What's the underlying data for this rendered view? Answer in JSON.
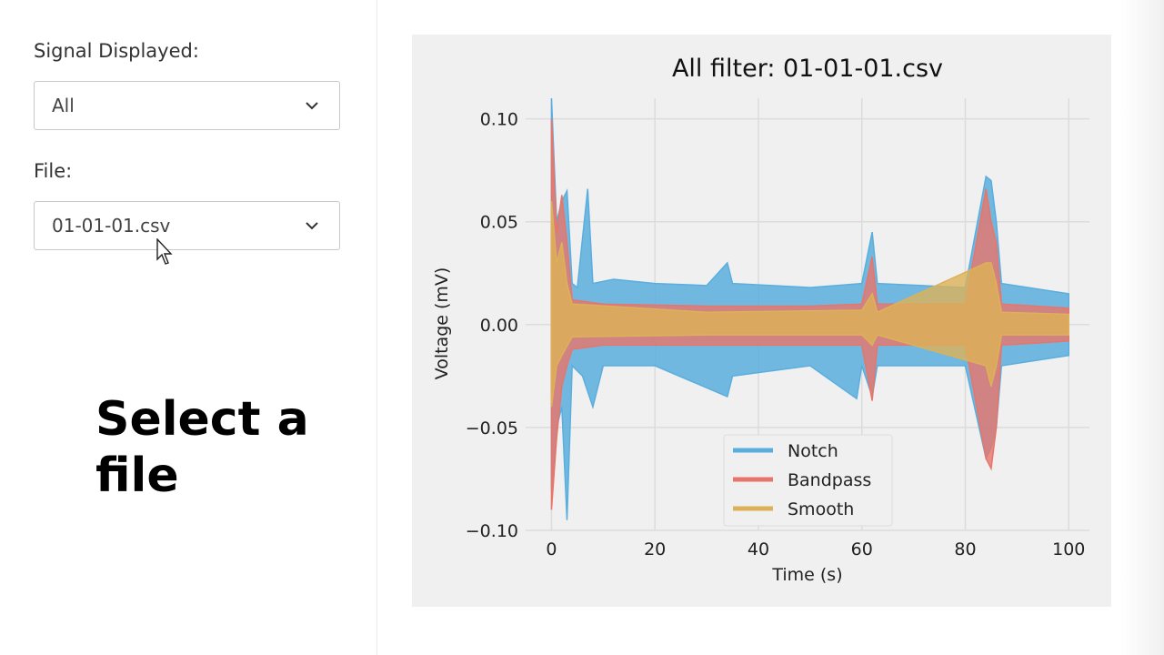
{
  "controls": {
    "signal_label": "Signal Displayed:",
    "signal_value": "All",
    "file_label": "File:",
    "file_value": "01-01-01.csv"
  },
  "caption": {
    "line1": "Select a",
    "line2": "file"
  },
  "icons": {
    "dropdown": "chevron-down-icon",
    "pointer": "mouse-cursor-icon"
  },
  "chart_data": {
    "type": "line",
    "title": "All filter: 01-01-01.csv",
    "xlabel": "Time (s)",
    "ylabel": "Voltage (mV)",
    "xlim": [
      -5,
      104
    ],
    "ylim": [
      -0.1,
      0.11
    ],
    "x_ticks": [
      0,
      20,
      40,
      60,
      80,
      100
    ],
    "x_tick_labels": [
      "0",
      "20",
      "40",
      "60",
      "80",
      "100"
    ],
    "y_ticks": [
      0.1,
      0.05,
      0.0,
      -0.05,
      -0.1
    ],
    "y_tick_labels": [
      "0.10",
      "0.05",
      "0.00",
      "−0.05",
      "−0.10"
    ],
    "grid": true,
    "legend_position": "bottom-center",
    "series": [
      {
        "name": "Notch",
        "color": "#5aaede",
        "upper": [
          [
            0,
            0.11
          ],
          [
            1,
            0.05
          ],
          [
            2,
            0.06
          ],
          [
            3,
            0.065
          ],
          [
            4,
            0.02
          ],
          [
            5,
            0.018
          ],
          [
            7,
            0.066
          ],
          [
            8,
            0.02
          ],
          [
            12,
            0.022
          ],
          [
            20,
            0.02
          ],
          [
            30,
            0.019
          ],
          [
            34,
            0.03
          ],
          [
            35,
            0.02
          ],
          [
            50,
            0.018
          ],
          [
            60,
            0.02
          ],
          [
            62,
            0.045
          ],
          [
            63,
            0.02
          ],
          [
            80,
            0.018
          ],
          [
            84,
            0.072
          ],
          [
            85,
            0.07
          ],
          [
            86,
            0.05
          ],
          [
            87,
            0.02
          ],
          [
            100,
            0.015
          ]
        ],
        "lower": [
          [
            0,
            -0.08
          ],
          [
            1,
            -0.05
          ],
          [
            2,
            -0.04
          ],
          [
            3,
            -0.095
          ],
          [
            4,
            -0.02
          ],
          [
            6,
            -0.025
          ],
          [
            8,
            -0.04
          ],
          [
            10,
            -0.02
          ],
          [
            20,
            -0.02
          ],
          [
            34,
            -0.035
          ],
          [
            35,
            -0.025
          ],
          [
            50,
            -0.02
          ],
          [
            59,
            -0.036
          ],
          [
            60,
            -0.02
          ],
          [
            62,
            -0.035
          ],
          [
            63,
            -0.02
          ],
          [
            80,
            -0.02
          ],
          [
            84,
            -0.065
          ],
          [
            85,
            -0.06
          ],
          [
            86,
            -0.05
          ],
          [
            87,
            -0.02
          ],
          [
            100,
            -0.015
          ]
        ]
      },
      {
        "name": "Bandpass",
        "color": "#e8756a",
        "upper": [
          [
            0,
            0.1
          ],
          [
            1,
            0.045
          ],
          [
            2,
            0.063
          ],
          [
            3,
            0.04
          ],
          [
            4,
            0.012
          ],
          [
            10,
            0.01
          ],
          [
            30,
            0.009
          ],
          [
            50,
            0.009
          ],
          [
            60,
            0.01
          ],
          [
            62,
            0.033
          ],
          [
            63,
            0.01
          ],
          [
            80,
            0.01
          ],
          [
            84,
            0.066
          ],
          [
            85,
            0.05
          ],
          [
            86,
            0.04
          ],
          [
            87,
            0.01
          ],
          [
            100,
            0.008
          ]
        ],
        "lower": [
          [
            0,
            -0.09
          ],
          [
            1,
            -0.055
          ],
          [
            2,
            -0.03
          ],
          [
            3,
            -0.02
          ],
          [
            4,
            -0.012
          ],
          [
            10,
            -0.01
          ],
          [
            30,
            -0.01
          ],
          [
            50,
            -0.01
          ],
          [
            60,
            -0.01
          ],
          [
            62,
            -0.037
          ],
          [
            63,
            -0.01
          ],
          [
            80,
            -0.01
          ],
          [
            84,
            -0.065
          ],
          [
            85,
            -0.07
          ],
          [
            86,
            -0.05
          ],
          [
            87,
            -0.01
          ],
          [
            100,
            -0.008
          ]
        ]
      },
      {
        "name": "Smooth",
        "color": "#ddb158",
        "upper": [
          [
            0,
            0.06
          ],
          [
            1,
            0.03
          ],
          [
            2,
            0.04
          ],
          [
            3,
            0.02
          ],
          [
            4,
            0.01
          ],
          [
            30,
            0.006
          ],
          [
            60,
            0.007
          ],
          [
            62,
            0.015
          ],
          [
            63,
            0.006
          ],
          [
            84,
            0.03
          ],
          [
            85,
            0.03
          ],
          [
            86,
            0.02
          ],
          [
            87,
            0.006
          ],
          [
            100,
            0.005
          ]
        ],
        "lower": [
          [
            0,
            -0.04
          ],
          [
            1,
            -0.02
          ],
          [
            2,
            -0.015
          ],
          [
            4,
            -0.006
          ],
          [
            30,
            -0.005
          ],
          [
            60,
            -0.005
          ],
          [
            62,
            -0.01
          ],
          [
            63,
            -0.005
          ],
          [
            84,
            -0.02
          ],
          [
            85,
            -0.03
          ],
          [
            86,
            -0.02
          ],
          [
            87,
            -0.005
          ],
          [
            100,
            -0.005
          ]
        ]
      }
    ]
  }
}
